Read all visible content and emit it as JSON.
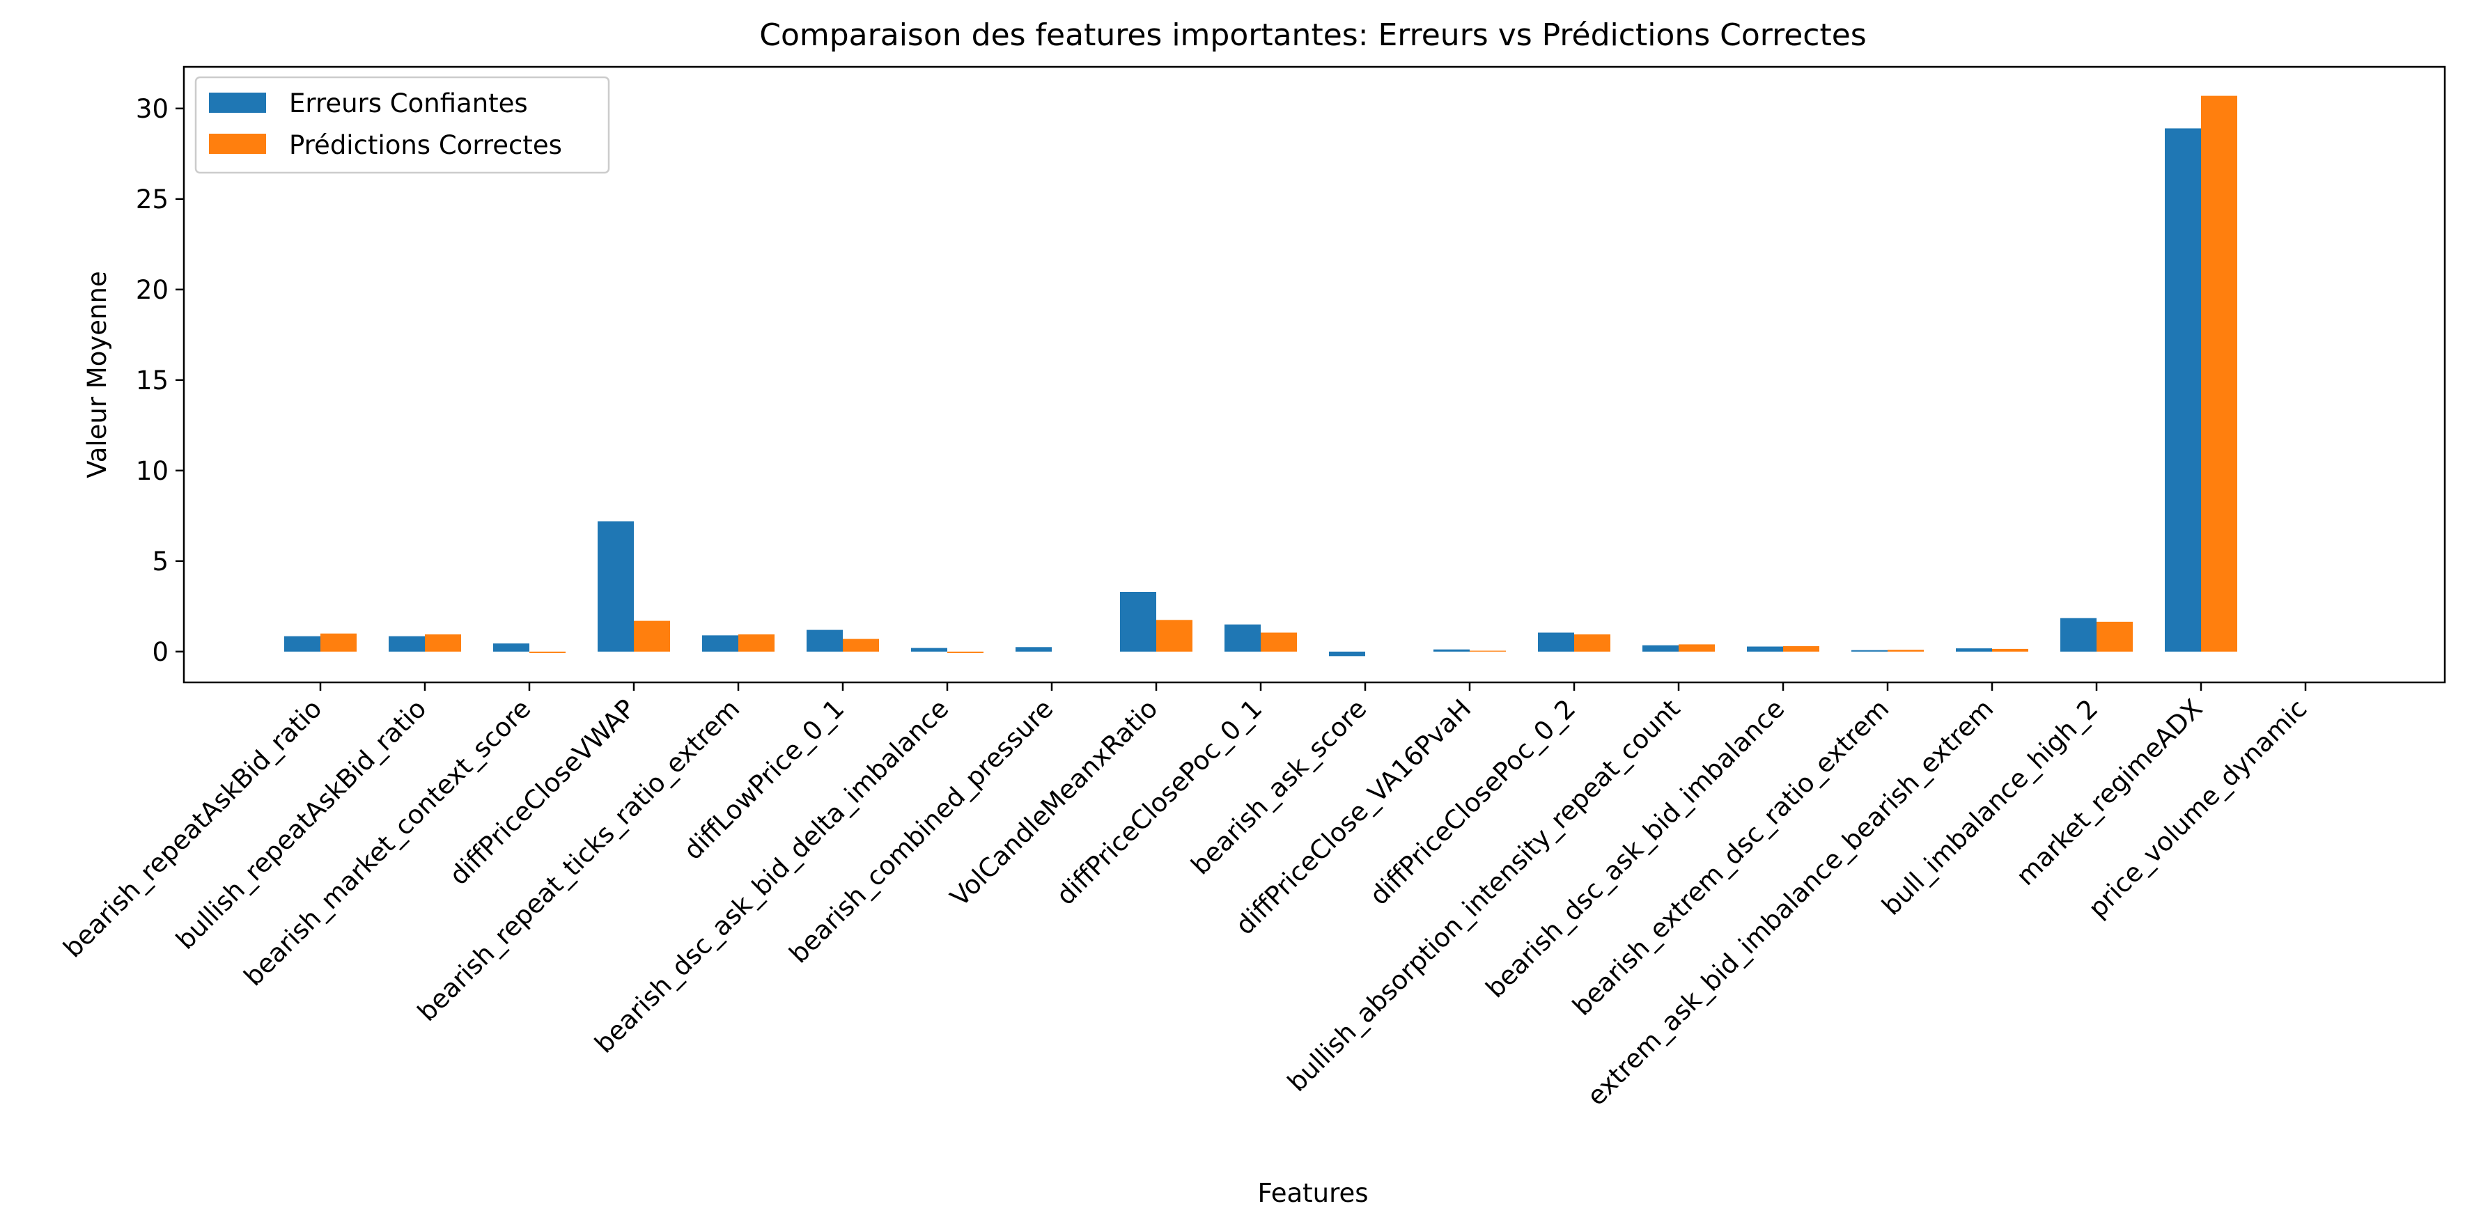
{
  "chart_data": {
    "type": "bar",
    "title": "Comparaison des features importantes: Erreurs vs Prédictions Correctes",
    "xlabel": "Features",
    "ylabel": "Valeur Moyenne",
    "ylim": [
      -1.7,
      32.3
    ],
    "yticks": [
      0,
      5,
      10,
      15,
      20,
      25,
      30
    ],
    "grid": false,
    "legend_position": "top-left",
    "categories": [
      "bearish_repeatAskBid_ratio",
      "bullish_repeatAskBid_ratio",
      "bearish_market_context_score",
      "diffPriceCloseVWAP",
      "bearish_repeat_ticks_ratio_extrem",
      "diffLowPrice_0_1",
      "bearish_dsc_ask_bid_delta_imbalance",
      "bearish_combined_pressure",
      "VolCandleMeanxRatio",
      "diffPriceClosePoc_0_1",
      "bearish_ask_score",
      "diffPriceClose_VA16PvaH",
      "diffPriceClosePoc_0_2",
      "bullish_absorption_intensity_repeat_count",
      "bearish_dsc_ask_bid_imbalance",
      "bearish_extrem_dsc_ratio_extrem",
      "extrem_ask_bid_imbalance_bearish_extrem",
      "bull_imbalance_high_2",
      "market_regimeADX",
      "price_volume_dynamic"
    ],
    "series": [
      {
        "name": "Erreurs Confiantes",
        "color": "#1f77b4",
        "values": [
          0.85,
          0.85,
          0.45,
          7.2,
          0.9,
          1.2,
          0.2,
          0.25,
          3.3,
          1.5,
          -0.25,
          0.12,
          1.05,
          0.35,
          0.28,
          0.08,
          0.18,
          1.85,
          28.9,
          0.0
        ]
      },
      {
        "name": "Prédictions Correctes",
        "color": "#ff7f0e",
        "values": [
          1.0,
          0.95,
          -0.08,
          1.7,
          0.95,
          0.7,
          -0.08,
          0.0,
          1.75,
          1.05,
          0.0,
          0.05,
          0.95,
          0.4,
          0.3,
          0.1,
          0.15,
          1.65,
          30.7,
          0.0
        ]
      }
    ]
  }
}
